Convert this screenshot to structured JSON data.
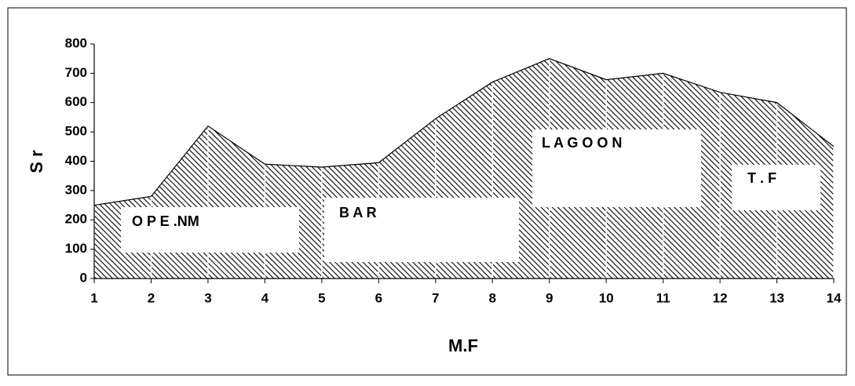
{
  "chart_data": {
    "type": "area",
    "ylabel": "S r",
    "xlabel": "M.F",
    "x": [
      1,
      2,
      3,
      4,
      5,
      6,
      7,
      8,
      9,
      10,
      11,
      12,
      13,
      14
    ],
    "values": [
      250,
      280,
      520,
      390,
      380,
      395,
      545,
      670,
      750,
      678,
      700,
      635,
      600,
      450
    ],
    "color": "#000000",
    "xlim": [
      1,
      14
    ],
    "xticks": [
      1,
      2,
      3,
      4,
      5,
      6,
      7,
      8,
      9,
      10,
      11,
      12,
      13,
      14
    ],
    "ylim": [
      0,
      800
    ],
    "yticks": [
      0,
      100,
      200,
      300,
      400,
      500,
      600,
      700,
      800
    ],
    "grid": true,
    "annotations": [
      "O P E .NM",
      "B A R",
      "L A G O O N",
      "T . F"
    ]
  }
}
